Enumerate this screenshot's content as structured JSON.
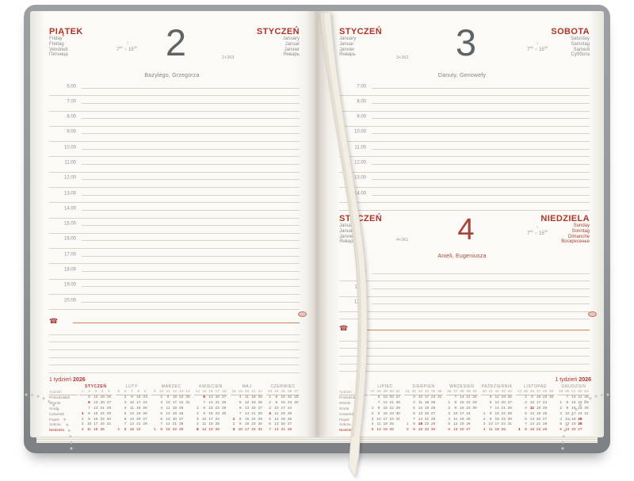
{
  "colors": {
    "accent_red": "#b13328",
    "sunday_red": "#a5443a",
    "rule_line": "#dbd3c5",
    "notes_line": "#cf8058",
    "cover_gray": "#94979a",
    "ribbon": "#f2eee3"
  },
  "week_banner": {
    "week": "1 tydzień",
    "year": "2026"
  },
  "left_page": {
    "day": {
      "title": "PIĄTEK",
      "translations": [
        "Friday",
        "Freitag",
        "Vendredi",
        "Пятница"
      ]
    },
    "month": {
      "title": "STYCZEŃ",
      "translations": [
        "January",
        "Januar",
        "Janvier",
        "Январь"
      ]
    },
    "big_number": "2",
    "day_of_year": "2+363",
    "sun": {
      "moon": "☽",
      "rise": "7",
      "rise_min": "45",
      "symbol": "○",
      "set": "15",
      "set_min": "32"
    },
    "name_day": "Bazylego, Grzegorza",
    "hours": [
      "6.00",
      "7.00",
      "8.00",
      "9.00",
      "10.00",
      "11.00",
      "12.00",
      "13.00",
      "14.00",
      "15.00",
      "16.00",
      "17.00",
      "18.00",
      "19.00",
      "20.00"
    ],
    "phone_icon": "☎"
  },
  "right_page_top": {
    "month": {
      "title": "STYCZEŃ",
      "translations": [
        "January",
        "Januar",
        "Janvier",
        "Январь"
      ]
    },
    "day": {
      "title": "SOBOTA",
      "translations": [
        "Saturday",
        "Samstag",
        "Samedi",
        "Суббота"
      ]
    },
    "big_number": "3",
    "day_of_year": "3+362",
    "sun": {
      "moon": "○",
      "rise": "7",
      "rise_min": "45",
      "symbol": "○",
      "set": "15",
      "set_min": "33"
    },
    "name_day": "Danuty, Genowefy",
    "hours": [
      "7.00",
      "8.00",
      "9.00",
      "10.00",
      "11.00",
      "12.00",
      "13.00",
      "14.00"
    ]
  },
  "right_page_bottom": {
    "month": {
      "title": "STYCZEŃ",
      "translations": [
        "January",
        "Januar",
        "Janvier",
        "Январь"
      ]
    },
    "day": {
      "title": "NIEDZIELA",
      "translations": [
        "Sunday",
        "Sonntag",
        "Dimanche",
        "Воскресенье"
      ]
    },
    "big_number": "4",
    "day_of_year": "4+361",
    "sun": {
      "moon": "○",
      "rise": "7",
      "rise_min": "44",
      "symbol": "○",
      "set": "15",
      "set_min": "34"
    },
    "name_day": "Anieli, Eugeniusza",
    "hours": [
      "9.00",
      "11.00",
      "13.00"
    ],
    "phone_icon": "☎"
  },
  "minical": {
    "row_labels": [
      "Tydzień",
      "Poniedziałek",
      "Wtorek",
      "Środa",
      "Czwartek",
      "Piątek",
      "Sobota",
      "Niedziela"
    ],
    "left_months": [
      {
        "name": "STYCZEŃ",
        "current": true,
        "weeks": [
          "1",
          "2",
          "3",
          "4",
          "5"
        ],
        "days": [
          [
            "",
            "5",
            "12",
            "19",
            "26"
          ],
          [
            "",
            "*6",
            "13",
            "20",
            "27"
          ],
          [
            "",
            "7",
            "14",
            "21",
            "28"
          ],
          [
            "*1",
            "8",
            "15",
            "22",
            "29"
          ],
          [
            "2",
            "9",
            "16",
            "23",
            "30"
          ],
          [
            "3",
            "10",
            "17",
            "24",
            "31"
          ],
          [
            "4",
            "11",
            "18",
            "25",
            ""
          ]
        ]
      },
      {
        "name": "LUTY",
        "current": false,
        "weeks": [
          "5",
          "6",
          "7",
          "8",
          "9"
        ],
        "days": [
          [
            "",
            "2",
            "9",
            "16",
            "23"
          ],
          [
            "",
            "3",
            "10",
            "17",
            "24"
          ],
          [
            "",
            "4",
            "11",
            "18",
            "25"
          ],
          [
            "",
            "5",
            "12",
            "19",
            "26"
          ],
          [
            "",
            "6",
            "13",
            "20",
            "27"
          ],
          [
            "",
            "7",
            "14",
            "21",
            "28"
          ],
          [
            "1",
            "8",
            "15",
            "22",
            ""
          ]
        ]
      },
      {
        "name": "MARZEC",
        "current": false,
        "weeks": [
          "9",
          "10",
          "11",
          "12",
          "13",
          "14"
        ],
        "days": [
          [
            "",
            "2",
            "9",
            "16",
            "23",
            "30"
          ],
          [
            "",
            "3",
            "10",
            "17",
            "24",
            "31"
          ],
          [
            "",
            "4",
            "11",
            "18",
            "25",
            ""
          ],
          [
            "",
            "5",
            "12",
            "19",
            "26",
            ""
          ],
          [
            "",
            "6",
            "13",
            "20",
            "27",
            ""
          ],
          [
            "",
            "7",
            "14",
            "21",
            "28",
            ""
          ],
          [
            "1",
            "8",
            "15",
            "22",
            "29",
            ""
          ]
        ]
      },
      {
        "name": "KWIECIEŃ",
        "current": false,
        "weeks": [
          "14",
          "15",
          "16",
          "17",
          "18"
        ],
        "days": [
          [
            "",
            "*6",
            "13",
            "20",
            "27"
          ],
          [
            "",
            "7",
            "14",
            "21",
            "28"
          ],
          [
            "1",
            "8",
            "15",
            "22",
            "29"
          ],
          [
            "2",
            "9",
            "16",
            "23",
            "30"
          ],
          [
            "3",
            "10",
            "17",
            "24",
            ""
          ],
          [
            "4",
            "11",
            "18",
            "25",
            ""
          ],
          [
            "*5",
            "12",
            "19",
            "26",
            ""
          ]
        ]
      },
      {
        "name": "MAJ",
        "current": false,
        "weeks": [
          "18",
          "19",
          "20",
          "21",
          "22"
        ],
        "days": [
          [
            "",
            "4",
            "11",
            "18",
            "25"
          ],
          [
            "",
            "5",
            "12",
            "19",
            "26"
          ],
          [
            "",
            "6",
            "13",
            "20",
            "27"
          ],
          [
            "",
            "7",
            "14",
            "21",
            "28"
          ],
          [
            "*1",
            "8",
            "15",
            "22",
            "29"
          ],
          [
            "2",
            "9",
            "16",
            "23",
            "30"
          ],
          [
            "*3",
            "10",
            "17",
            "24",
            "31"
          ]
        ]
      },
      {
        "name": "CZERWIEC",
        "current": false,
        "weeks": [
          "23",
          "24",
          "25",
          "26",
          "27"
        ],
        "days": [
          [
            "1",
            "8",
            "15",
            "22",
            "29"
          ],
          [
            "2",
            "9",
            "16",
            "23",
            "30"
          ],
          [
            "3",
            "10",
            "17",
            "24",
            ""
          ],
          [
            "*4",
            "11",
            "18",
            "25",
            ""
          ],
          [
            "5",
            "12",
            "19",
            "26",
            ""
          ],
          [
            "6",
            "13",
            "20",
            "27",
            ""
          ],
          [
            "7",
            "14",
            "21",
            "28",
            ""
          ]
        ]
      }
    ],
    "right_months": [
      {
        "name": "LIPIEC",
        "current": false,
        "weeks": [
          "27",
          "28",
          "29",
          "30",
          "31"
        ],
        "days": [
          [
            "",
            "6",
            "13",
            "20",
            "27"
          ],
          [
            "",
            "7",
            "14",
            "21",
            "28"
          ],
          [
            "1",
            "8",
            "15",
            "22",
            "29"
          ],
          [
            "2",
            "9",
            "16",
            "23",
            "30"
          ],
          [
            "3",
            "10",
            "17",
            "24",
            "31"
          ],
          [
            "4",
            "11",
            "18",
            "25",
            ""
          ],
          [
            "5",
            "12",
            "19",
            "26",
            ""
          ]
        ]
      },
      {
        "name": "SIERPIEŃ",
        "current": false,
        "weeks": [
          "31",
          "32",
          "33",
          "34",
          "35",
          "36"
        ],
        "days": [
          [
            "",
            "3",
            "10",
            "17",
            "24",
            "31"
          ],
          [
            "",
            "4",
            "11",
            "18",
            "25",
            ""
          ],
          [
            "",
            "5",
            "12",
            "19",
            "26",
            ""
          ],
          [
            "",
            "6",
            "13",
            "20",
            "27",
            ""
          ],
          [
            "",
            "7",
            "14",
            "21",
            "28",
            ""
          ],
          [
            "1",
            "8",
            "*15",
            "22",
            "29",
            ""
          ],
          [
            "2",
            "9",
            "16",
            "23",
            "30",
            ""
          ]
        ]
      },
      {
        "name": "WRZESIEŃ",
        "current": false,
        "weeks": [
          "36",
          "37",
          "38",
          "39",
          "40"
        ],
        "days": [
          [
            "",
            "7",
            "14",
            "21",
            "28"
          ],
          [
            "1",
            "8",
            "15",
            "22",
            "29"
          ],
          [
            "2",
            "9",
            "16",
            "23",
            "30"
          ],
          [
            "3",
            "10",
            "17",
            "24",
            ""
          ],
          [
            "4",
            "11",
            "18",
            "25",
            ""
          ],
          [
            "5",
            "12",
            "19",
            "26",
            ""
          ],
          [
            "6",
            "13",
            "20",
            "27",
            ""
          ]
        ]
      },
      {
        "name": "PAŹDZIERNIK",
        "current": false,
        "weeks": [
          "40",
          "41",
          "42",
          "43",
          "44"
        ],
        "days": [
          [
            "",
            "5",
            "12",
            "19",
            "26"
          ],
          [
            "",
            "6",
            "13",
            "20",
            "27"
          ],
          [
            "",
            "7",
            "14",
            "21",
            "28"
          ],
          [
            "1",
            "8",
            "15",
            "22",
            "29"
          ],
          [
            "2",
            "9",
            "16",
            "23",
            "30"
          ],
          [
            "3",
            "10",
            "17",
            "24",
            "31"
          ],
          [
            "4",
            "11",
            "18",
            "25",
            ""
          ]
        ]
      },
      {
        "name": "LISTOPAD",
        "current": false,
        "weeks": [
          "44",
          "45",
          "46",
          "47",
          "48",
          "49"
        ],
        "days": [
          [
            "",
            "2",
            "9",
            "16",
            "23",
            "30"
          ],
          [
            "",
            "3",
            "10",
            "17",
            "24",
            ""
          ],
          [
            "",
            "4",
            "*11",
            "18",
            "25",
            ""
          ],
          [
            "",
            "5",
            "12",
            "19",
            "26",
            ""
          ],
          [
            "",
            "6",
            "13",
            "20",
            "27",
            ""
          ],
          [
            "",
            "7",
            "14",
            "21",
            "28",
            ""
          ],
          [
            "*1",
            "8",
            "15",
            "22",
            "29",
            ""
          ]
        ]
      },
      {
        "name": "GRUDZIEŃ",
        "current": false,
        "weeks": [
          "49",
          "50",
          "51",
          "52",
          "53"
        ],
        "days": [
          [
            "",
            "7",
            "14",
            "21",
            "28"
          ],
          [
            "1",
            "8",
            "15",
            "22",
            "29"
          ],
          [
            "2",
            "9",
            "16",
            "23",
            "30"
          ],
          [
            "3",
            "10",
            "17",
            "24",
            "31"
          ],
          [
            "4",
            "11",
            "18",
            "*25",
            ""
          ],
          [
            "5",
            "12",
            "19",
            "*26",
            ""
          ],
          [
            "6",
            "13",
            "20",
            "27",
            ""
          ]
        ]
      }
    ]
  }
}
